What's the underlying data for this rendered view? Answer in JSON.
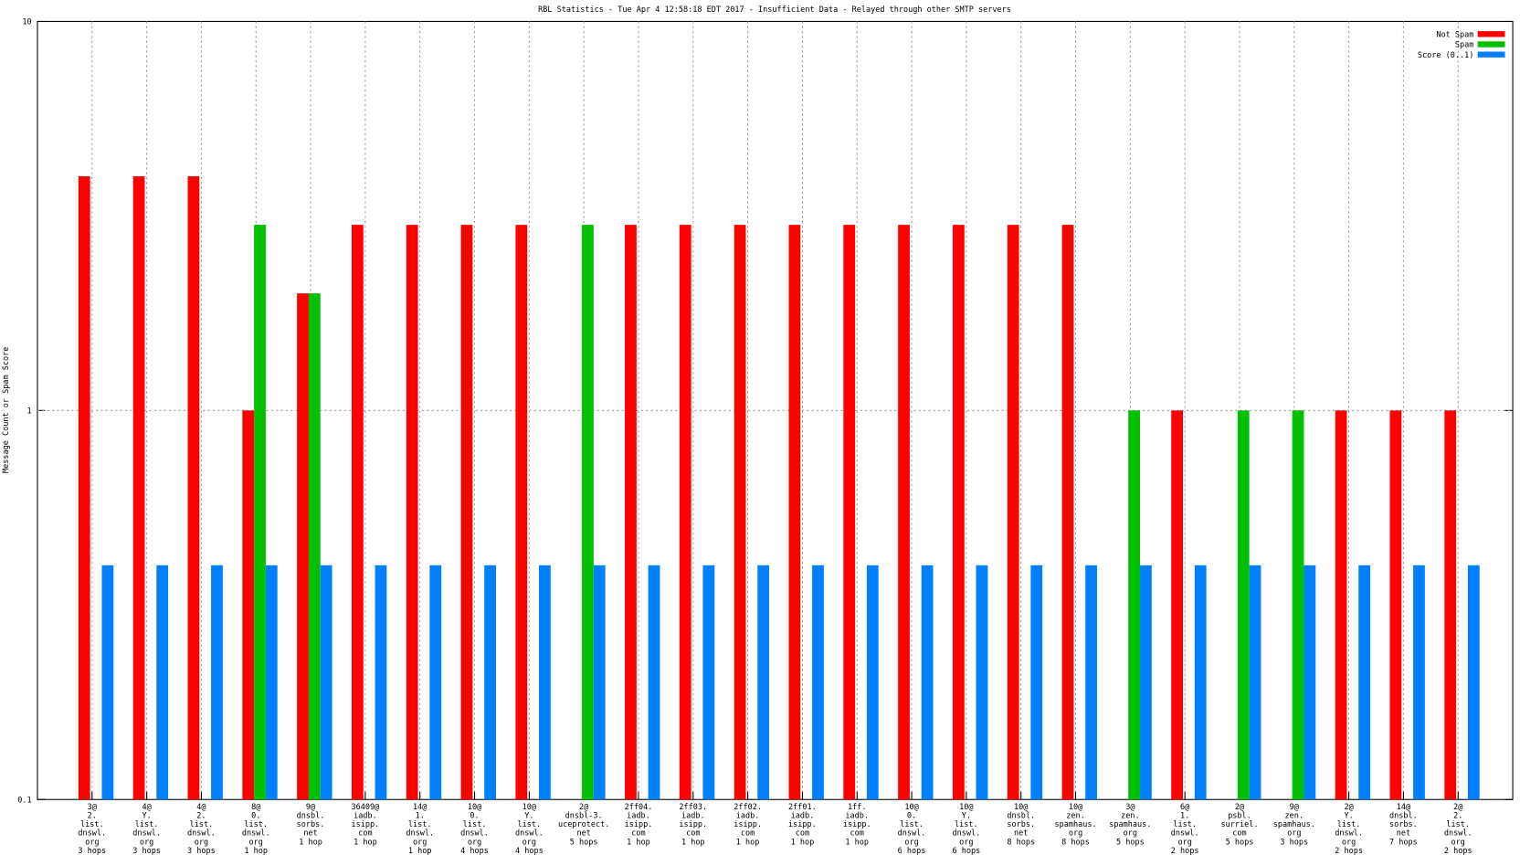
{
  "chart_data": {
    "type": "bar",
    "title": "RBL Statistics - Tue Apr  4 12:58:18 EDT 2017 - Insufficient Data - Relayed through other SMTP servers",
    "y_label": "Message Count or Spam Score",
    "log_scale": true,
    "grid": true,
    "legend": "top-right",
    "ylim": [
      0.1,
      10
    ],
    "yticks": [
      0.1,
      1,
      10
    ],
    "categories": [
      [
        "3@",
        "2.",
        "list.",
        "dnswl.",
        "org",
        "3 hops"
      ],
      [
        "4@",
        "Y.",
        "list.",
        "dnswl.",
        "org",
        "3 hops"
      ],
      [
        "4@",
        "2.",
        "list.",
        "dnswl.",
        "org",
        "3 hops"
      ],
      [
        "8@",
        "0.",
        "list.",
        "dnswl.",
        "org",
        "1 hop"
      ],
      [
        "9@",
        "dnsbl.",
        "sorbs.",
        "net",
        "1 hop"
      ],
      [
        "36409@",
        "iadb.",
        "isipp.",
        "com",
        "1 hop"
      ],
      [
        "14@",
        "1.",
        "list.",
        "dnswl.",
        "org",
        "1 hop"
      ],
      [
        "10@",
        "0.",
        "list.",
        "dnswl.",
        "org",
        "4 hops"
      ],
      [
        "10@",
        "Y.",
        "list.",
        "dnswl.",
        "org",
        "4 hops"
      ],
      [
        "2@",
        "dnsbl-3.",
        "uceprotect.",
        "net",
        "5 hops"
      ],
      [
        "2ff04.",
        "iadb.",
        "isipp.",
        "com",
        "1 hop"
      ],
      [
        "2ff03.",
        "iadb.",
        "isipp.",
        "com",
        "1 hop"
      ],
      [
        "2ff02.",
        "iadb.",
        "isipp.",
        "com",
        "1 hop"
      ],
      [
        "2ff01.",
        "iadb.",
        "isipp.",
        "com",
        "1 hop"
      ],
      [
        "1ff.",
        "iadb.",
        "isipp.",
        "com",
        "1 hop"
      ],
      [
        "10@",
        "0.",
        "list.",
        "dnswl.",
        "org",
        "6 hops"
      ],
      [
        "10@",
        "Y.",
        "list.",
        "dnswl.",
        "org",
        "6 hops"
      ],
      [
        "10@",
        "dnsbl.",
        "sorbs.",
        "net",
        "8 hops"
      ],
      [
        "10@",
        "zen.",
        "spamhaus.",
        "org",
        "8 hops"
      ],
      [
        "3@",
        "zen.",
        "spamhaus.",
        "org",
        "5 hops"
      ],
      [
        "6@",
        "1.",
        "list.",
        "dnswl.",
        "org",
        "2 hops"
      ],
      [
        "2@",
        "psbl.",
        "surriel.",
        "com",
        "5 hops"
      ],
      [
        "9@",
        "zen.",
        "spamhaus.",
        "org",
        "3 hops"
      ],
      [
        "2@",
        "Y.",
        "list.",
        "dnswl.",
        "org",
        "2 hops"
      ],
      [
        "14@",
        "dnsbl.",
        "sorbs.",
        "net",
        "7 hops"
      ],
      [
        "2@",
        "2.",
        "list.",
        "dnswl.",
        "org",
        "2 hops"
      ]
    ],
    "series": [
      {
        "name": "Not Spam",
        "color": "#ff0000",
        "values": [
          4,
          4,
          4,
          1,
          2,
          3,
          3,
          3,
          3,
          null,
          3,
          3,
          3,
          3,
          3,
          3,
          3,
          3,
          3,
          null,
          1,
          null,
          null,
          1,
          1,
          1
        ]
      },
      {
        "name": "Spam",
        "color": "#00c000",
        "values": [
          null,
          null,
          null,
          3,
          2,
          null,
          null,
          null,
          null,
          3,
          null,
          null,
          null,
          null,
          null,
          null,
          null,
          null,
          null,
          1,
          null,
          1,
          1,
          null,
          null,
          null
        ]
      },
      {
        "name": "Score (0..1)",
        "color": "#0080ff",
        "values": [
          0.4,
          0.4,
          0.4,
          0.4,
          0.4,
          0.4,
          0.4,
          0.4,
          0.4,
          0.4,
          0.4,
          0.4,
          0.4,
          0.4,
          0.4,
          0.4,
          0.4,
          0.4,
          0.4,
          0.4,
          0.4,
          0.4,
          0.4,
          0.4,
          0.4,
          0.4
        ]
      }
    ]
  }
}
